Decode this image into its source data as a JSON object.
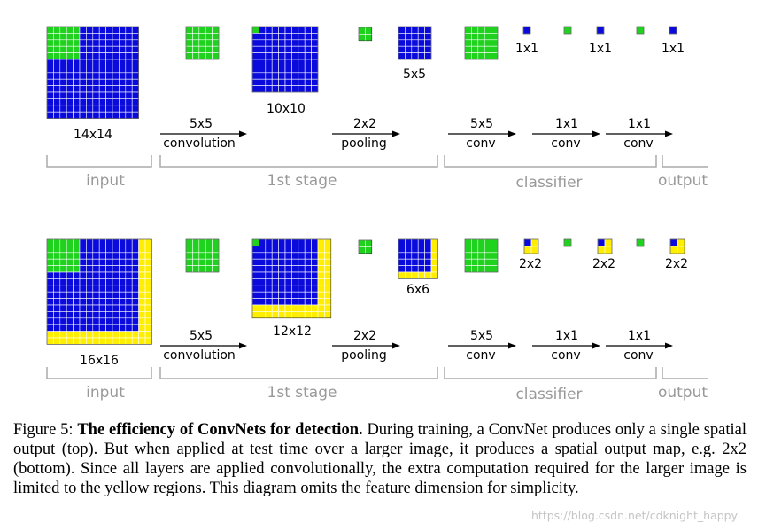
{
  "colors": {
    "blue": "#0a0adc",
    "green": "#1ed21e",
    "yellow": "#ffee00",
    "bracket": "#aaaaaa"
  },
  "rows": [
    {
      "labels": {
        "input_size": "14x14",
        "stage_output_size": "10x10",
        "pooled_size": "5x5",
        "out1": "1x1",
        "out2": "1x1",
        "out3": "1x1"
      },
      "extra_border": 0
    },
    {
      "labels": {
        "input_size": "16x16",
        "stage_output_size": "12x12",
        "pooled_size": "6x6",
        "out1": "2x2",
        "out2": "2x2",
        "out3": "2x2"
      },
      "extra_border": 2
    }
  ],
  "arrows": {
    "a1": {
      "top": "5x5",
      "bottom": "convolution"
    },
    "a2": {
      "top": "2x2",
      "bottom": "pooling"
    },
    "a3": {
      "top": "5x5",
      "bottom": "conv"
    },
    "a4": {
      "top": "1x1",
      "bottom": "conv"
    },
    "a5": {
      "top": "1x1",
      "bottom": "conv"
    }
  },
  "groups": {
    "input": "input",
    "stage": "1st stage",
    "classifier": "classifier",
    "output": "output"
  },
  "caption": {
    "prefix": "Figure 5: ",
    "bold": "The efficiency of ConvNets for detection.",
    "text": " During training, a ConvNet produces only a single spatial output (top). But when applied at test time over a larger image, it produces a spatial output map, e.g.  2x2 (bottom).  Since all layers are applied convolutionally, the extra computation required for the larger image is limited to the yellow regions.  This diagram omits the feature dimension for simplicity."
  },
  "watermark": "https://blog.csdn.net/cdknight_happy"
}
